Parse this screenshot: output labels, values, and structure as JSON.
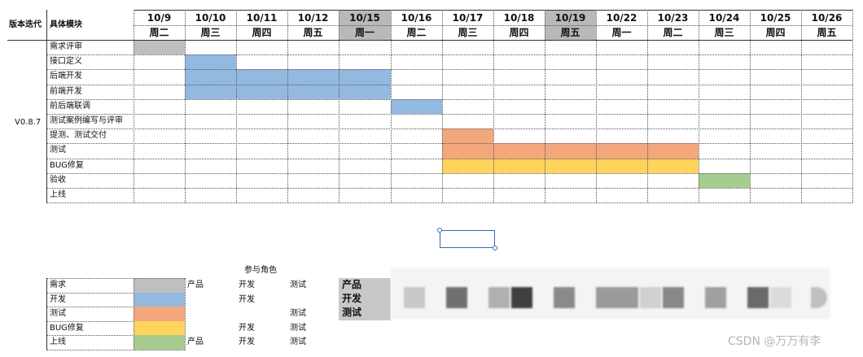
{
  "table": {
    "col_version": "版本迭代",
    "col_module": "具体模块",
    "version": "V0.8.7",
    "dates": [
      "10/9",
      "10/10",
      "10/11",
      "10/12",
      "10/15",
      "10/16",
      "10/17",
      "10/18",
      "10/19",
      "10/22",
      "10/23",
      "10/24",
      "10/25",
      "10/26"
    ],
    "weekdays": [
      "周二",
      "周三",
      "周四",
      "周五",
      "周一",
      "周二",
      "周三",
      "周四",
      "周五",
      "周一",
      "周二",
      "周三",
      "周四",
      "周五"
    ],
    "shaded_header_columns": [
      4,
      8
    ],
    "tasks": [
      {
        "name": "需求评审",
        "color": "#bfbfbf",
        "start": 0,
        "end": 0
      },
      {
        "name": "接口定义",
        "color": "#94b9e1",
        "start": 1,
        "end": 1
      },
      {
        "name": "后端开发",
        "color": "#94b9e1",
        "start": 1,
        "end": 4
      },
      {
        "name": "前端开发",
        "color": "#94b9e1",
        "start": 1,
        "end": 4
      },
      {
        "name": "前后端联调",
        "color": "#94b9e1",
        "start": 5,
        "end": 5
      },
      {
        "name": "测试案例编写与评审",
        "color": null,
        "start": null,
        "end": null
      },
      {
        "name": "提测、测试交付",
        "color": "#f3a77d",
        "start": 6,
        "end": 6
      },
      {
        "name": "测试",
        "color": "#f3a77d",
        "start": 6,
        "end": 10
      },
      {
        "name": "BUG修复",
        "color": "#ffd35c",
        "start": 6,
        "end": 10
      },
      {
        "name": "验收",
        "color": "#a7cc8f",
        "start": 11,
        "end": 11
      },
      {
        "name": "上线",
        "color": null,
        "start": null,
        "end": null
      }
    ]
  },
  "legend": {
    "title": "参与角色",
    "rows": [
      {
        "name": "需求",
        "color": "#bfbfbf",
        "roles": [
          "产品",
          "开发",
          "测试"
        ]
      },
      {
        "name": "开发",
        "color": "#94b9e1",
        "roles": [
          "",
          "开发",
          ""
        ]
      },
      {
        "name": "测试",
        "color": "#f3a77d",
        "roles": [
          "",
          "",
          "测试"
        ]
      },
      {
        "name": "BUG修复",
        "color": "#ffd35c",
        "roles": [
          "",
          "开发",
          "测试"
        ]
      },
      {
        "name": "上线",
        "color": "#a7cc8f",
        "roles": [
          "产品",
          "开发",
          "测试"
        ]
      }
    ],
    "role_key": [
      "产品",
      "开发",
      "测试"
    ]
  },
  "watermark": "CSDN @万万有李"
}
